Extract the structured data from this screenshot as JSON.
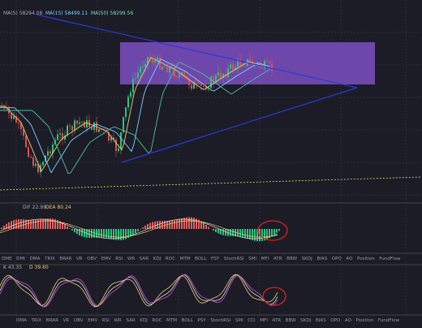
{
  "main_legend": {
    "ma5": "MA(5) 58294.08",
    "ma15": "MA(15) 58499.11",
    "ma50": "MA(50) 58299.56"
  },
  "macd_legend": {
    "dif": "DIF 22.99",
    "dea": "DEA 80.24"
  },
  "kdj_legend": {
    "k": "K 43.35",
    "d": "D 39.60"
  },
  "tabs_top": [
    "DME",
    "DMI",
    "DMA",
    "TRIX",
    "BRAR",
    "VR",
    "OBV",
    "EMV",
    "RSI",
    "WR",
    "SAR",
    "KDJ",
    "ROC",
    "MTM",
    "BOLL",
    "PSY",
    "StochRSI",
    "SMI",
    "MFI",
    "ATR",
    "BBW",
    "SKDJ",
    "BIAS",
    "OPO",
    "AO",
    "Position",
    "FundFlow"
  ],
  "tabs_bottom": [
    "DMA",
    "TRIX",
    "BRAR",
    "VR",
    "OBV",
    "EMV",
    "RSI",
    "WR",
    "SAR",
    "KDJ",
    "ROC",
    "MTM",
    "BOLL",
    "PSY",
    "StochRSI",
    "SMI",
    "CCI",
    "MFI",
    "ATR",
    "BBW",
    "SKDJ",
    "BIAS",
    "OPO",
    "AO",
    "Position",
    "FundFlow"
  ]
}
